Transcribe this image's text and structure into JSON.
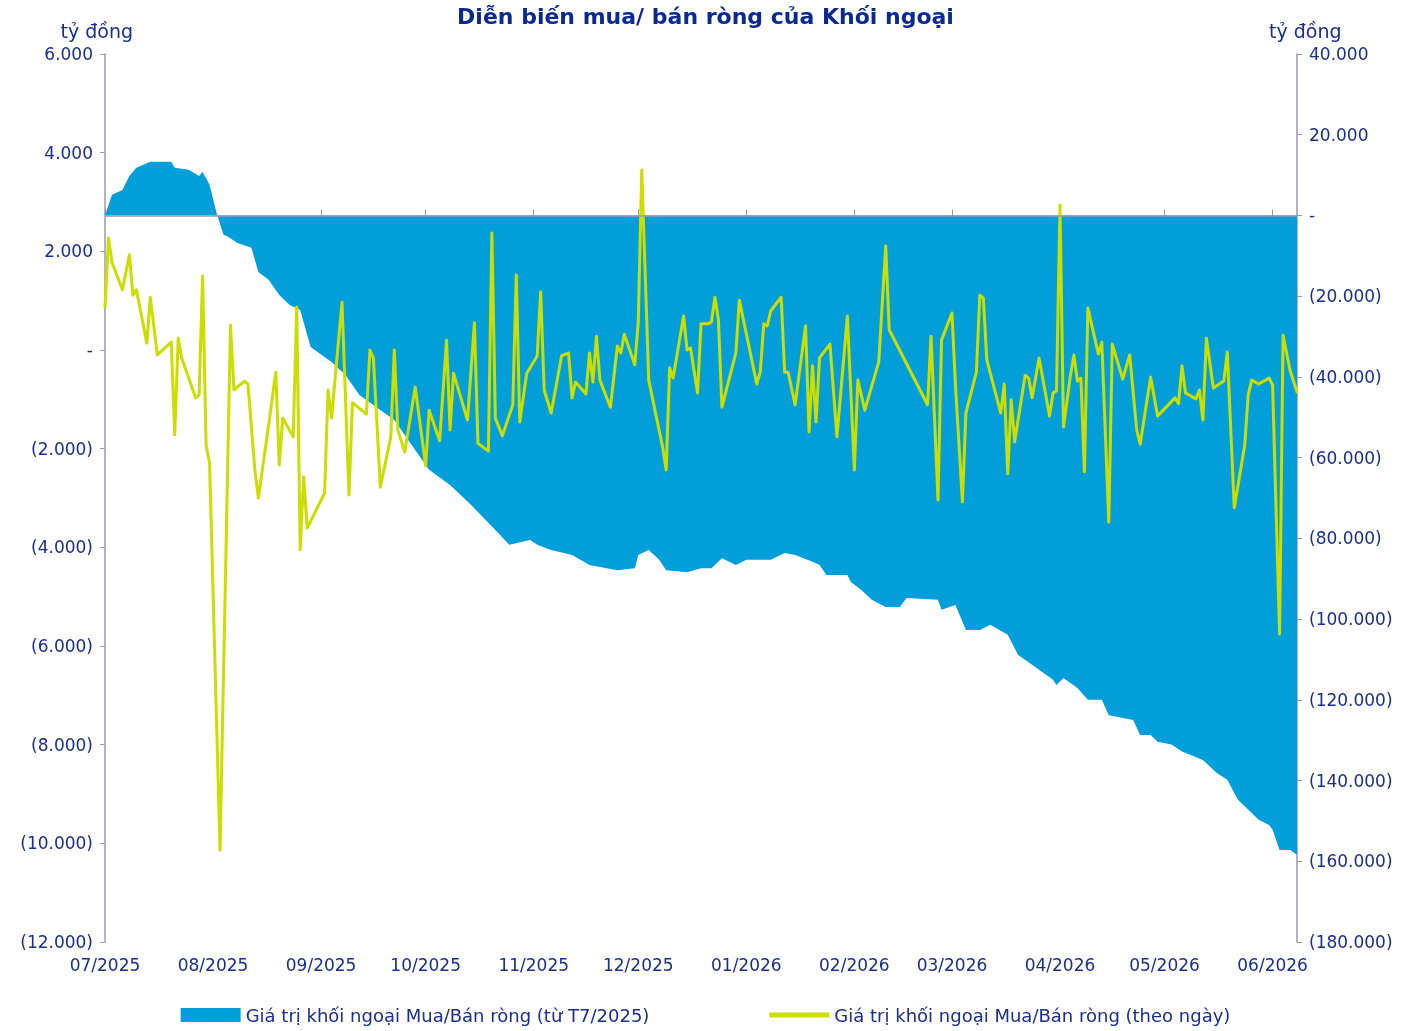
{
  "chart_data": {
    "type": "line",
    "title": "Diễn biến mua/ bán ròng của Khối ngoại",
    "ylabel": "tỷ đồng",
    "y2label": "tỷ đồng",
    "xlim": [
      "2025-07-01",
      "2026-06-08"
    ],
    "xticks": [
      {
        "value": "2025-07-01",
        "label": "07/2025"
      },
      {
        "value": "2025-08-01",
        "label": "08/2025"
      },
      {
        "value": "2025-09-01",
        "label": "09/2025"
      },
      {
        "value": "2025-10-01",
        "label": "10/2025"
      },
      {
        "value": "2025-11-01",
        "label": "11/2025"
      },
      {
        "value": "2025-12-01",
        "label": "12/2025"
      },
      {
        "value": "2026-01-01",
        "label": "01/2026"
      },
      {
        "value": "2026-02-01",
        "label": "02/2026"
      },
      {
        "value": "2026-03-01",
        "label": "03/2026"
      },
      {
        "value": "2026-04-01",
        "label": "04/2026"
      },
      {
        "value": "2026-05-01",
        "label": "05/2026"
      },
      {
        "value": "2026-06-01",
        "label": "06/2026"
      }
    ],
    "ylim": [
      -12000,
      6000
    ],
    "yticks": [
      {
        "value": -12000,
        "label": "(12.000)"
      },
      {
        "value": -10000,
        "label": "(10.000)"
      },
      {
        "value": -8000,
        "label": "(8.000)"
      },
      {
        "value": -6000,
        "label": "(6.000)"
      },
      {
        "value": -4000,
        "label": "(4.000)"
      },
      {
        "value": -2000,
        "label": "(2.000)"
      },
      {
        "value": 0,
        "label": "-"
      },
      {
        "value": 2000,
        "label": "2.000"
      },
      {
        "value": 4000,
        "label": "4.000"
      },
      {
        "value": 6000,
        "label": "6.000"
      }
    ],
    "y2lim": [
      -180000,
      40000
    ],
    "y2ticks": [
      {
        "value": -180000,
        "label": "(180.000)"
      },
      {
        "value": -160000,
        "label": "(160.000)"
      },
      {
        "value": -140000,
        "label": "(140.000)"
      },
      {
        "value": -120000,
        "label": "(120.000)"
      },
      {
        "value": -100000,
        "label": "(100.000)"
      },
      {
        "value": -80000,
        "label": "(80.000)"
      },
      {
        "value": -60000,
        "label": "(60.000)"
      },
      {
        "value": -40000,
        "label": "(40.000)"
      },
      {
        "value": -20000,
        "label": "(20.000)"
      },
      {
        "value": 0,
        "label": "-"
      },
      {
        "value": 20000,
        "label": "20.000"
      },
      {
        "value": 40000,
        "label": "40.000"
      }
    ],
    "ref_lines": [
      {
        "axis": "y2",
        "value": 0,
        "color": "#9a98b5",
        "line_style": "solid"
      }
    ],
    "grid": false,
    "legend": "bottom",
    "marker": "none",
    "line_style": "solid",
    "series": [
      {
        "name": "Giá trị khối ngoại Mua/Bán ròng (từ T7/2025)",
        "type": "area",
        "axis": "y2",
        "color": "#009fda",
        "x": [
          "2025-07-01",
          "2025-07-03",
          "2025-07-06",
          "2025-07-08",
          "2025-07-10",
          "2025-07-14",
          "2025-07-20",
          "2025-07-21",
          "2025-07-25",
          "2025-07-28",
          "2025-07-29",
          "2025-07-31",
          "2025-08-02",
          "2025-08-04",
          "2025-08-05",
          "2025-08-08",
          "2025-08-12",
          "2025-08-14",
          "2025-08-17",
          "2025-08-20",
          "2025-08-23",
          "2025-08-26",
          "2025-08-29",
          "2025-09-04",
          "2025-09-08",
          "2025-09-12",
          "2025-09-18",
          "2025-09-22",
          "2025-09-26",
          "2025-10-02",
          "2025-10-08",
          "2025-10-14",
          "2025-10-21",
          "2025-10-25",
          "2025-10-31",
          "2025-11-02",
          "2025-11-06",
          "2025-11-12",
          "2025-11-17",
          "2025-11-25",
          "2025-11-30",
          "2025-12-01",
          "2025-12-04",
          "2025-12-07",
          "2025-12-09",
          "2025-12-15",
          "2025-12-19",
          "2025-12-22",
          "2025-12-25",
          "2025-12-29",
          "2026-01-01",
          "2026-01-08",
          "2026-01-12",
          "2026-01-15",
          "2026-01-20",
          "2026-01-22",
          "2026-01-24",
          "2026-01-30",
          "2026-01-31",
          "2026-02-03",
          "2026-02-06",
          "2026-02-10",
          "2026-02-14",
          "2026-02-16",
          "2026-02-25",
          "2026-02-26",
          "2026-03-02",
          "2026-03-05",
          "2026-03-09",
          "2026-03-12",
          "2026-03-17",
          "2026-03-20",
          "2026-03-24",
          "2026-03-30",
          "2026-03-31",
          "2026-04-02",
          "2026-04-06",
          "2026-04-09",
          "2026-04-13",
          "2026-04-15",
          "2026-04-22",
          "2026-04-24",
          "2026-04-27",
          "2026-04-29",
          "2026-05-03",
          "2026-05-06",
          "2026-05-12",
          "2026-05-15",
          "2026-05-16",
          "2026-05-19",
          "2026-05-22",
          "2026-05-28",
          "2026-05-31",
          "2026-06-01",
          "2026-06-03",
          "2026-06-06",
          "2026-06-08"
        ],
        "values": [
          0,
          5100,
          6300,
          9800,
          11800,
          13300,
          13300,
          11800,
          11300,
          9800,
          10800,
          7600,
          600,
          -4800,
          -5100,
          -6800,
          -8000,
          -14000,
          -16000,
          -19700,
          -22200,
          -23400,
          -32600,
          -36300,
          -39500,
          -44500,
          -48200,
          -50700,
          -55600,
          -63000,
          -66800,
          -71700,
          -77900,
          -81600,
          -80400,
          -81600,
          -82900,
          -84100,
          -86600,
          -87900,
          -87400,
          -84100,
          -82900,
          -85300,
          -87900,
          -88400,
          -87400,
          -87400,
          -84900,
          -86600,
          -85300,
          -85300,
          -83600,
          -84100,
          -85800,
          -86600,
          -89100,
          -89100,
          -90800,
          -92800,
          -95200,
          -97000,
          -97000,
          -94800,
          -95200,
          -97700,
          -96500,
          -102700,
          -102700,
          -101400,
          -103900,
          -108900,
          -111300,
          -115000,
          -116300,
          -114600,
          -117100,
          -120000,
          -120000,
          -123800,
          -125000,
          -128700,
          -128700,
          -130400,
          -131100,
          -132800,
          -134900,
          -137300,
          -138100,
          -139800,
          -144700,
          -149700,
          -151000,
          -152200,
          -157200,
          -157200,
          -158400
        ]
      },
      {
        "name": "Giá trị khối ngoại Mua/Bán ròng (theo ngày)",
        "type": "line",
        "color": "#ccdd00",
        "x": [
          "2025-07-01",
          "2025-07-02",
          "2025-07-03",
          "2025-07-06",
          "2025-07-08",
          "2025-07-09",
          "2025-07-10",
          "2025-07-13",
          "2025-07-14",
          "2025-07-16",
          "2025-07-20",
          "2025-07-21",
          "2025-07-22",
          "2025-07-23",
          "2025-07-27",
          "2025-07-28",
          "2025-07-29",
          "2025-07-30",
          "2025-07-31",
          "2025-08-03",
          "2025-08-06",
          "2025-08-07",
          "2025-08-10",
          "2025-08-11",
          "2025-08-13",
          "2025-08-14",
          "2025-08-17",
          "2025-08-19",
          "2025-08-20",
          "2025-08-21",
          "2025-08-24",
          "2025-08-25",
          "2025-08-26",
          "2025-08-27",
          "2025-08-28",
          "2025-09-02",
          "2025-09-03",
          "2025-09-04",
          "2025-09-07",
          "2025-09-09",
          "2025-09-10",
          "2025-09-14",
          "2025-09-15",
          "2025-09-16",
          "2025-09-18",
          "2025-09-21",
          "2025-09-22",
          "2025-09-23",
          "2025-09-25",
          "2025-09-28",
          "2025-10-01",
          "2025-10-02",
          "2025-10-05",
          "2025-10-07",
          "2025-10-08",
          "2025-10-09",
          "2025-10-13",
          "2025-10-15",
          "2025-10-16",
          "2025-10-19",
          "2025-10-20",
          "2025-10-21",
          "2025-10-23",
          "2025-10-26",
          "2025-10-27",
          "2025-10-28",
          "2025-10-30",
          "2025-11-02",
          "2025-11-03",
          "2025-11-04",
          "2025-11-06",
          "2025-11-09",
          "2025-11-11",
          "2025-11-12",
          "2025-11-13",
          "2025-11-16",
          "2025-11-17",
          "2025-11-18",
          "2025-11-19",
          "2025-11-20",
          "2025-11-23",
          "2025-11-25",
          "2025-11-26",
          "2025-11-27",
          "2025-11-30",
          "2025-12-01",
          "2025-12-02",
          "2025-12-04",
          "2025-12-08",
          "2025-12-09",
          "2025-12-10",
          "2025-12-11",
          "2025-12-14",
          "2025-12-15",
          "2025-12-16",
          "2025-12-18",
          "2025-12-19",
          "2025-12-21",
          "2025-12-22",
          "2025-12-23",
          "2025-12-24",
          "2025-12-25",
          "2025-12-29",
          "2025-12-30",
          "2026-01-04",
          "2026-01-05",
          "2026-01-06",
          "2026-01-07",
          "2026-01-08",
          "2026-01-11",
          "2026-01-12",
          "2026-01-13",
          "2026-01-15",
          "2026-01-18",
          "2026-01-19",
          "2026-01-20",
          "2026-01-21",
          "2026-01-22",
          "2026-01-25",
          "2026-01-27",
          "2026-01-30",
          "2026-02-01",
          "2026-02-02",
          "2026-02-04",
          "2026-02-08",
          "2026-02-10",
          "2026-02-11",
          "2026-02-22",
          "2026-02-23",
          "2026-02-25",
          "2026-02-26",
          "2026-03-01",
          "2026-03-02",
          "2026-03-04",
          "2026-03-05",
          "2026-03-08",
          "2026-03-09",
          "2026-03-10",
          "2026-03-11",
          "2026-03-15",
          "2026-03-16",
          "2026-03-17",
          "2026-03-18",
          "2026-03-19",
          "2026-03-22",
          "2026-03-23",
          "2026-03-24",
          "2026-03-26",
          "2026-03-29",
          "2026-03-30",
          "2026-03-31",
          "2026-04-01",
          "2026-04-02",
          "2026-04-04",
          "2026-04-05",
          "2026-04-06",
          "2026-04-07",
          "2026-04-08",
          "2026-04-09",
          "2026-04-12",
          "2026-04-13",
          "2026-04-15",
          "2026-04-16",
          "2026-04-19",
          "2026-04-21",
          "2026-04-23",
          "2026-04-24",
          "2026-04-27",
          "2026-04-29",
          "2026-05-04",
          "2026-05-05",
          "2026-05-06",
          "2026-05-07",
          "2026-05-10",
          "2026-05-11",
          "2026-05-12",
          "2026-05-13",
          "2026-05-15",
          "2026-05-18",
          "2026-05-19",
          "2026-05-21",
          "2026-05-24",
          "2026-05-25",
          "2026-05-26",
          "2026-05-28",
          "2026-05-31",
          "2026-06-01",
          "2026-06-03",
          "2026-06-04",
          "2026-06-06",
          "2026-06-08"
        ],
        "values": [
          870,
          2270,
          1780,
          1220,
          1930,
          1110,
          1220,
          140,
          1070,
          -100,
          160,
          -1720,
          240,
          -160,
          -970,
          -910,
          1500,
          -1930,
          -2290,
          -10140,
          500,
          -810,
          -630,
          -690,
          -2430,
          -3000,
          -1500,
          -450,
          -2330,
          -1380,
          -1760,
          870,
          -4050,
          -2570,
          -3610,
          -2900,
          -810,
          -1380,
          970,
          -2940,
          -1070,
          -1300,
          0,
          -160,
          -2780,
          -1760,
          0,
          -1620,
          -2070,
          -750,
          -2350,
          -1220,
          -1840,
          200,
          -1620,
          -470,
          -1420,
          550,
          -1890,
          -2050,
          2370,
          -1380,
          -1740,
          -1110,
          1520,
          -1460,
          -470,
          -120,
          1180,
          -810,
          -1280,
          -120,
          -60,
          -970,
          -650,
          -890,
          -60,
          -650,
          280,
          -610,
          -1160,
          80,
          -60,
          320,
          -300,
          570,
          3650,
          -610,
          -1970,
          -2430,
          -360,
          -570,
          690,
          0,
          40,
          -870,
          530,
          530,
          570,
          1070,
          610,
          -1160,
          -60,
          1010,
          -690,
          -450,
          530,
          490,
          790,
          1070,
          -450,
          -450,
          -1110,
          490,
          -1660,
          -320,
          -1460,
          -160,
          120,
          -1760,
          690,
          -2430,
          -610,
          -1220,
          -240,
          2110,
          410,
          -1110,
          280,
          -3040,
          200,
          750,
          -710,
          -3080,
          -1280,
          -450,
          1110,
          1050,
          -200,
          -1280,
          -690,
          -2510,
          -1010,
          -1860,
          -510,
          -570,
          -970,
          -160,
          -1340,
          -870,
          -830,
          2940,
          -1560,
          -510,
          -100,
          -630,
          -570,
          -2470,
          850,
          -80,
          160,
          -3490,
          120,
          -590,
          -100,
          -1620,
          -1910,
          -550,
          -1340,
          -970,
          -1090,
          -320,
          -870,
          -990,
          -810,
          -1420,
          240,
          -770,
          -630,
          -40,
          -3200,
          -1930,
          -910,
          -610,
          -690,
          -570,
          -710,
          -5760,
          300,
          -410,
          -850
        ]
      }
    ]
  }
}
